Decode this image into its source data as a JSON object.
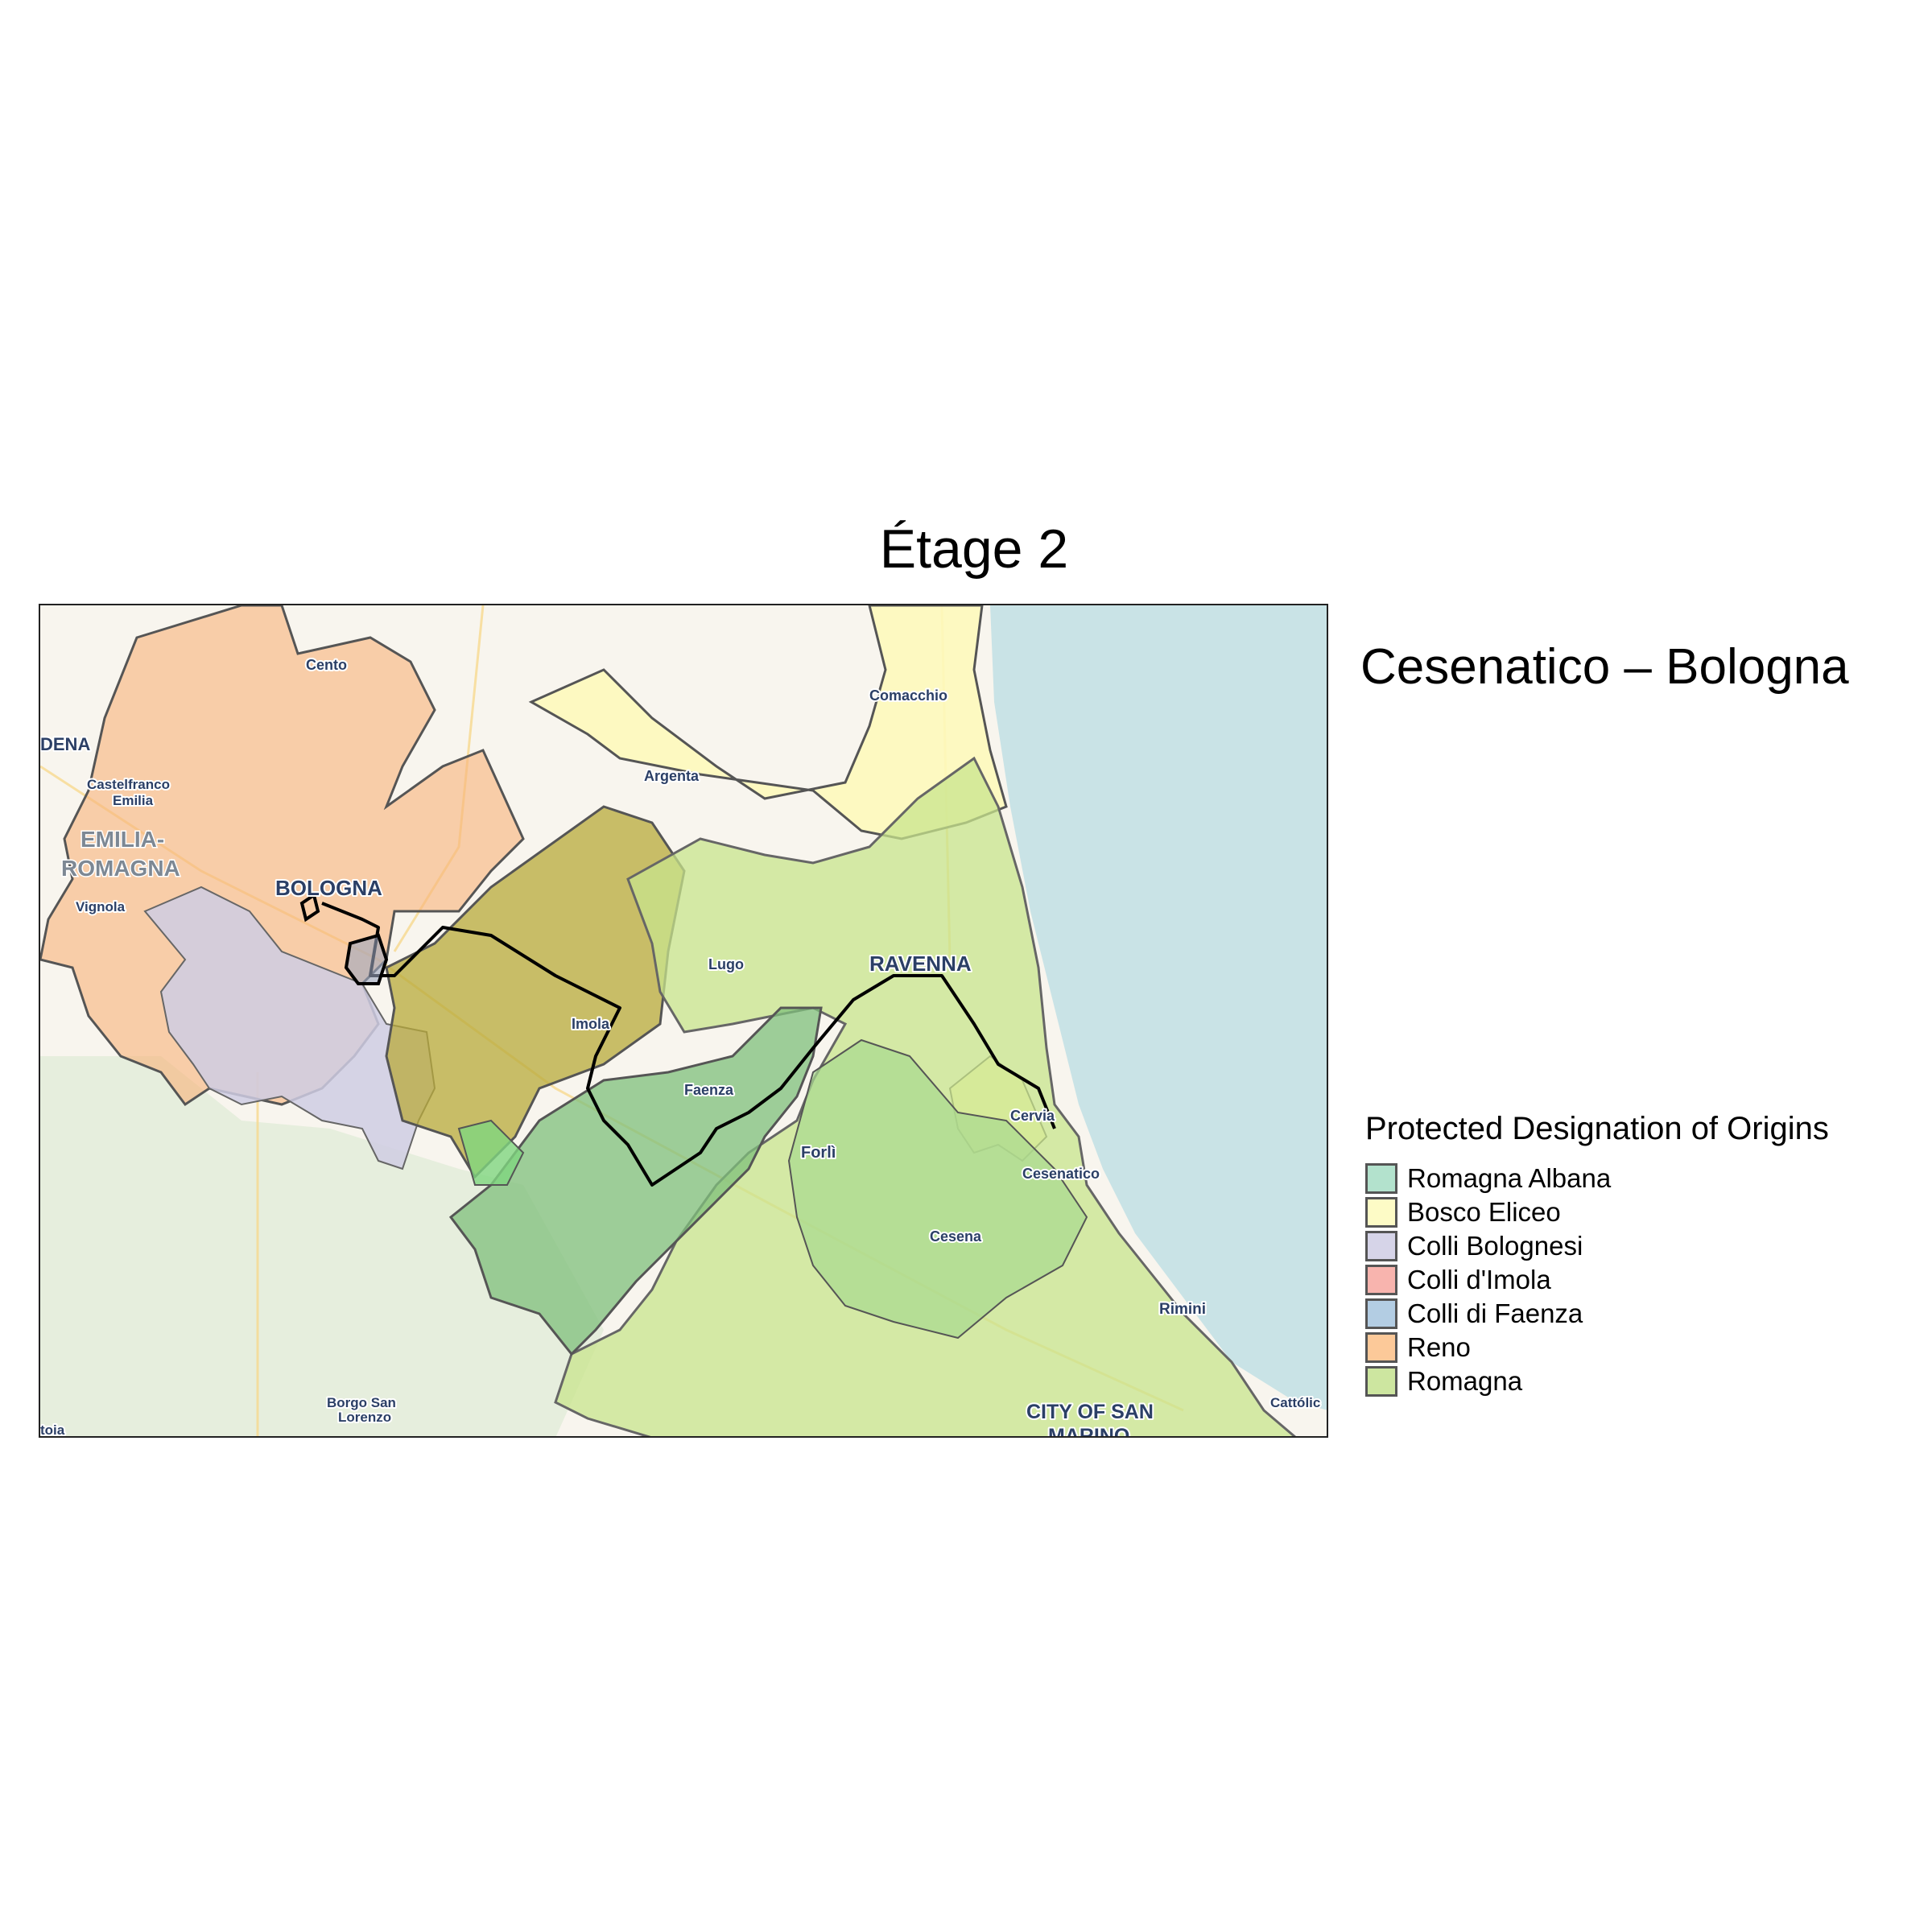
{
  "title": "Étage 2",
  "subtitle": "Cesenatico – Bologna",
  "legend": {
    "title": "Protected Designation of Origins",
    "items": [
      {
        "label": "Romagna Albana",
        "color": "#b3e2cd"
      },
      {
        "label": "Bosco Eliceo",
        "color": "#fdfbc6"
      },
      {
        "label": "Colli Bolognesi",
        "color": "#d6d4e8"
      },
      {
        "label": "Colli d'Imola",
        "color": "#f8b4ae"
      },
      {
        "label": "Colli di Faenza",
        "color": "#b3cde3"
      },
      {
        "label": "Reno",
        "color": "#fcc999"
      },
      {
        "label": "Romagna",
        "color": "#cde6a0"
      }
    ]
  },
  "map": {
    "sea_color": "#c9e3e6",
    "land_color": "#f7f3ea",
    "route_color": "#000000",
    "labels": {
      "cento": "Cento",
      "comacchio": "Comacchio",
      "dena": "DENA",
      "castelfranco": "Castelfranco",
      "emilia": "Emilia",
      "argenta": "Argenta",
      "emilia_romagna_1": "EMILIA-",
      "emilia_romagna_2": "ROMAGNA",
      "vignola": "Vignola",
      "bologna": "BOLOGNA",
      "lugo": "Lugo",
      "ravenna": "RAVENNA",
      "imola": "Imola",
      "faenza": "Faenza",
      "cervia": "Cervia",
      "forli": "Forlì",
      "cesenatico": "Cesenatico",
      "cesena": "Cesena",
      "rimini": "Rimini",
      "borgo_1": "Borgo San",
      "borgo_2": "Lorenzo",
      "city_of_san_1": "CITY OF SAN",
      "city_of_san_2": "MARINO",
      "cattolica": "Cattólic",
      "toia": "toia"
    }
  }
}
